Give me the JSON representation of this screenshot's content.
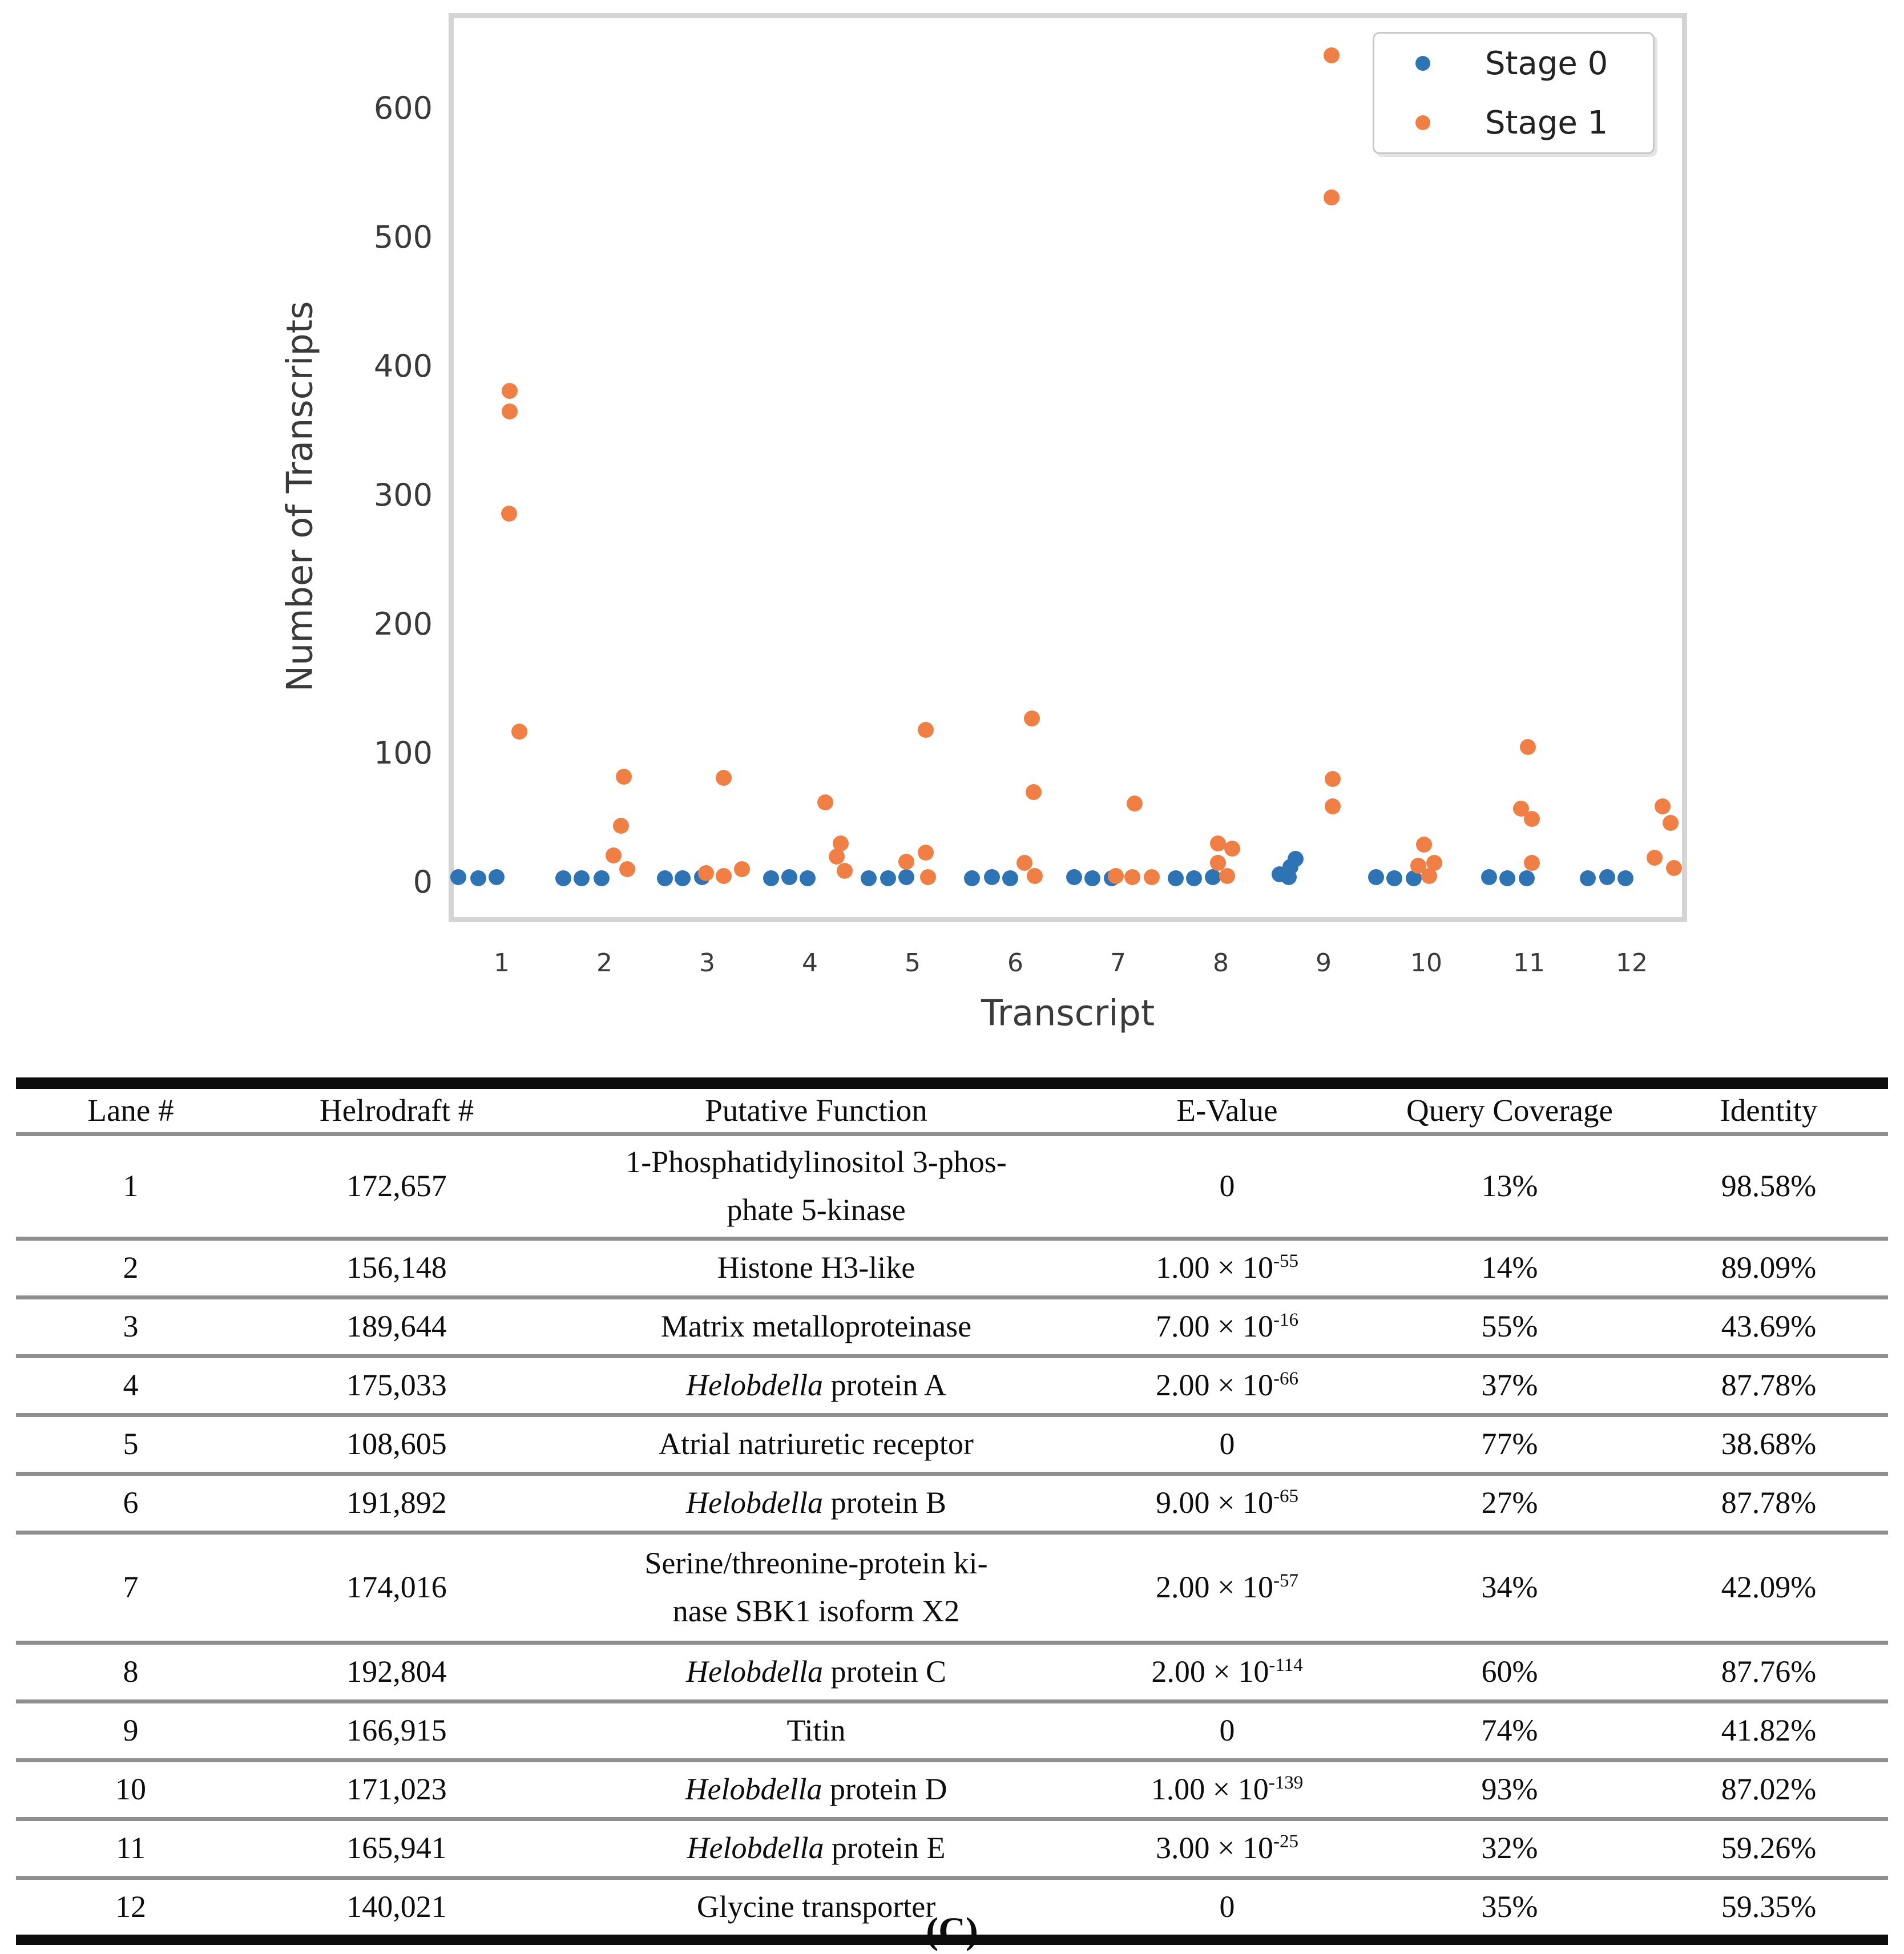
{
  "chart": {
    "ylabel": "Number of Transcripts",
    "xlabel": "Transcript",
    "legend": [
      {
        "label": "Stage 0",
        "color": "#2e74b5"
      },
      {
        "label": "Stage 1",
        "color": "#ef7f44"
      }
    ]
  },
  "chart_data": {
    "type": "scatter",
    "title": "",
    "xlabel": "Transcript",
    "ylabel": "Number of Transcripts",
    "x_ticks": [
      1,
      2,
      3,
      4,
      5,
      6,
      7,
      8,
      9,
      10,
      11,
      12
    ],
    "y_ticks": [
      0,
      100,
      200,
      300,
      400,
      500,
      600
    ],
    "xlim": [
      0.45,
      12.55
    ],
    "ylim": [
      -27,
      674
    ],
    "grid": false,
    "legend_position": "upper right",
    "series": [
      {
        "name": "Stage 0",
        "color": "#2e74b5",
        "points": [
          [
            0.58,
            4
          ],
          [
            0.77,
            3
          ],
          [
            0.95,
            4
          ],
          [
            1.6,
            3
          ],
          [
            1.78,
            3
          ],
          [
            1.97,
            3
          ],
          [
            2.59,
            3
          ],
          [
            2.76,
            3
          ],
          [
            2.95,
            4
          ],
          [
            3.62,
            3
          ],
          [
            3.8,
            4
          ],
          [
            3.98,
            3
          ],
          [
            4.57,
            3
          ],
          [
            4.76,
            3
          ],
          [
            4.94,
            4
          ],
          [
            5.58,
            3
          ],
          [
            5.77,
            4
          ],
          [
            5.95,
            3
          ],
          [
            6.57,
            4
          ],
          [
            6.75,
            3
          ],
          [
            6.94,
            3
          ],
          [
            7.56,
            3
          ],
          [
            7.74,
            3
          ],
          [
            7.92,
            4
          ],
          [
            8.57,
            6
          ],
          [
            8.66,
            4
          ],
          [
            8.68,
            12
          ],
          [
            8.73,
            18
          ],
          [
            9.51,
            4
          ],
          [
            9.69,
            3
          ],
          [
            9.88,
            3
          ],
          [
            10.61,
            4
          ],
          [
            10.79,
            3
          ],
          [
            10.98,
            3
          ],
          [
            11.57,
            3
          ],
          [
            11.76,
            4
          ],
          [
            11.94,
            3
          ]
        ]
      },
      {
        "name": "Stage 1",
        "color": "#ef7f44",
        "points": [
          [
            1.08,
            381
          ],
          [
            1.08,
            365
          ],
          [
            1.07,
            286
          ],
          [
            1.17,
            117
          ],
          [
            2.19,
            82
          ],
          [
            2.16,
            44
          ],
          [
            2.09,
            21
          ],
          [
            2.22,
            10
          ],
          [
            3.16,
            81
          ],
          [
            3.34,
            10
          ],
          [
            2.99,
            7
          ],
          [
            3.16,
            5
          ],
          [
            4.15,
            62
          ],
          [
            4.3,
            30
          ],
          [
            4.26,
            20
          ],
          [
            4.34,
            9
          ],
          [
            5.13,
            118
          ],
          [
            5.13,
            23
          ],
          [
            4.94,
            16
          ],
          [
            5.15,
            4
          ],
          [
            6.16,
            127
          ],
          [
            6.18,
            70
          ],
          [
            6.09,
            15
          ],
          [
            6.19,
            5
          ],
          [
            7.16,
            61
          ],
          [
            6.98,
            5
          ],
          [
            7.14,
            4
          ],
          [
            7.33,
            4
          ],
          [
            7.97,
            30
          ],
          [
            8.11,
            26
          ],
          [
            7.97,
            15
          ],
          [
            8.06,
            5
          ],
          [
            9.08,
            641
          ],
          [
            9.08,
            531
          ],
          [
            9.09,
            80
          ],
          [
            9.09,
            59
          ],
          [
            9.98,
            29
          ],
          [
            10.08,
            15
          ],
          [
            9.92,
            13
          ],
          [
            10.03,
            5
          ],
          [
            10.99,
            105
          ],
          [
            10.92,
            57
          ],
          [
            11.03,
            49
          ],
          [
            11.03,
            15
          ],
          [
            12.3,
            59
          ],
          [
            12.38,
            46
          ],
          [
            12.22,
            19
          ],
          [
            12.41,
            11
          ]
        ]
      }
    ]
  },
  "table": {
    "headers": [
      "Lane #",
      "Helrodraft #",
      "Putative Function",
      "E-Value",
      "Query Coverage",
      "Identity"
    ],
    "rows": [
      {
        "lane": "1",
        "helrodraft": "172,657",
        "function": [
          [
            {
              "t": "1-Phosphatidylinositol 3-phos-"
            }
          ],
          [
            {
              "t": "phate 5-kinase"
            }
          ]
        ],
        "evalue": {
          "base": "0",
          "exp": ""
        },
        "coverage": "13%",
        "identity": "98.58%"
      },
      {
        "lane": "2",
        "helrodraft": "156,148",
        "function": [
          [
            {
              "t": "Histone H3-like"
            }
          ]
        ],
        "evalue": {
          "base": "1.00 × 10",
          "exp": "-55"
        },
        "coverage": "14%",
        "identity": "89.09%"
      },
      {
        "lane": "3",
        "helrodraft": "189,644",
        "function": [
          [
            {
              "t": "Matrix metalloproteinase"
            }
          ]
        ],
        "evalue": {
          "base": "7.00 × 10",
          "exp": "-16"
        },
        "coverage": "55%",
        "identity": "43.69%"
      },
      {
        "lane": "4",
        "helrodraft": "175,033",
        "function": [
          [
            {
              "t": "Helobdella",
              "i": true
            },
            {
              "t": " protein A"
            }
          ]
        ],
        "evalue": {
          "base": "2.00 × 10",
          "exp": "-66"
        },
        "coverage": "37%",
        "identity": "87.78%"
      },
      {
        "lane": "5",
        "helrodraft": "108,605",
        "function": [
          [
            {
              "t": "Atrial natriuretic receptor"
            }
          ]
        ],
        "evalue": {
          "base": "0",
          "exp": ""
        },
        "coverage": "77%",
        "identity": "38.68%"
      },
      {
        "lane": "6",
        "helrodraft": "191,892",
        "function": [
          [
            {
              "t": "Helobdella",
              "i": true
            },
            {
              "t": " protein B"
            }
          ]
        ],
        "evalue": {
          "base": "9.00 × 10",
          "exp": "-65"
        },
        "coverage": "27%",
        "identity": "87.78%"
      },
      {
        "lane": "7",
        "helrodraft": "174,016",
        "function": [
          [
            {
              "t": "Serine/threonine-protein ki-"
            }
          ],
          [
            {
              "t": "nase SBK1 isoform X2"
            }
          ]
        ],
        "evalue": {
          "base": "2.00 × 10",
          "exp": "-57"
        },
        "coverage": "34%",
        "identity": "42.09%"
      },
      {
        "lane": "8",
        "helrodraft": "192,804",
        "function": [
          [
            {
              "t": "Helobdella",
              "i": true
            },
            {
              "t": " protein C"
            }
          ]
        ],
        "evalue": {
          "base": "2.00 × 10",
          "exp": "-114"
        },
        "coverage": "60%",
        "identity": "87.76%"
      },
      {
        "lane": "9",
        "helrodraft": "166,915",
        "function": [
          [
            {
              "t": "Titin"
            }
          ]
        ],
        "evalue": {
          "base": "0",
          "exp": ""
        },
        "coverage": "74%",
        "identity": "41.82%"
      },
      {
        "lane": "10",
        "helrodraft": "171,023",
        "function": [
          [
            {
              "t": "Helobdella",
              "i": true
            },
            {
              "t": " protein D"
            }
          ]
        ],
        "evalue": {
          "base": "1.00 × 10",
          "exp": "-139"
        },
        "coverage": "93%",
        "identity": "87.02%"
      },
      {
        "lane": "11",
        "helrodraft": "165,941",
        "function": [
          [
            {
              "t": "Helobdella",
              "i": true
            },
            {
              "t": " protein E"
            }
          ]
        ],
        "evalue": {
          "base": "3.00 × 10",
          "exp": "-25"
        },
        "coverage": "32%",
        "identity": "59.26%"
      },
      {
        "lane": "12",
        "helrodraft": "140,021",
        "function": [
          [
            {
              "t": "Glycine transporter"
            }
          ]
        ],
        "evalue": {
          "base": "0",
          "exp": ""
        },
        "coverage": "35%",
        "identity": "59.35%"
      }
    ]
  },
  "caption": "(C)"
}
